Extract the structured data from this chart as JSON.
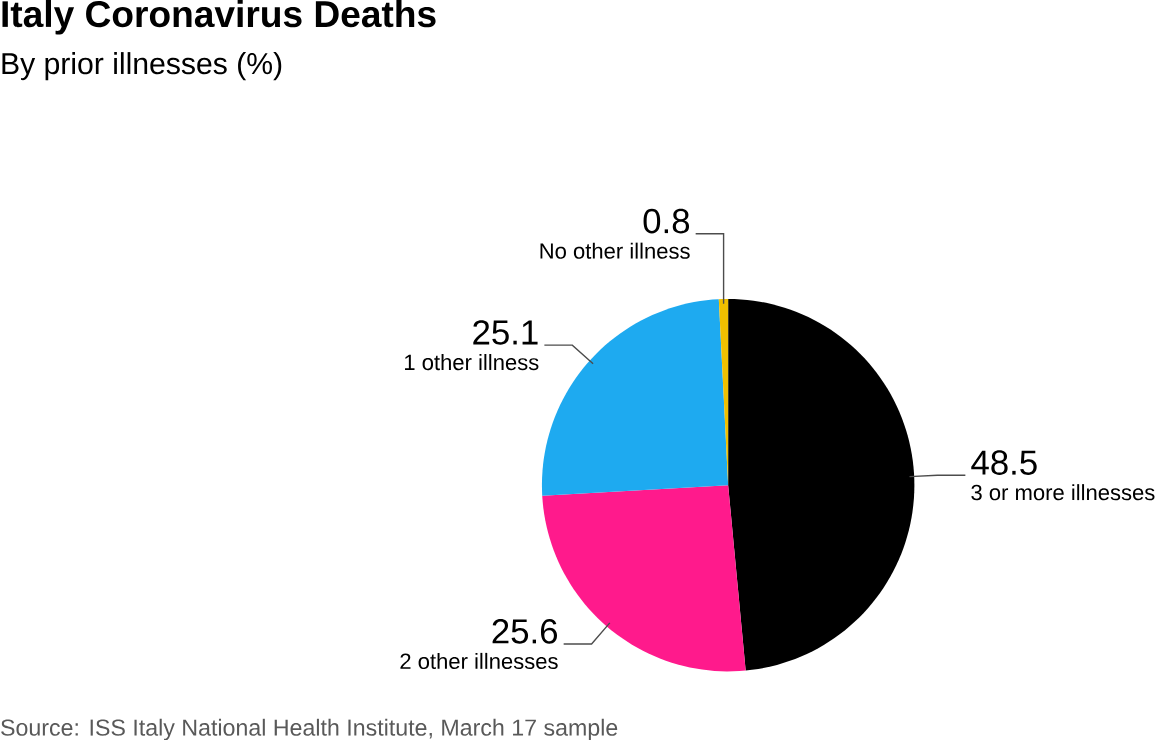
{
  "chart_data": {
    "type": "pie",
    "title": "Italy Coronavirus Deaths",
    "subtitle": "By prior illnesses (%)",
    "categories": [
      "3 or more illnesses",
      "2 other illnesses",
      "1 other illness",
      "No other illness"
    ],
    "values": [
      48.5,
      25.6,
      25.1,
      0.8
    ],
    "colors": [
      "#000000",
      "#ff1a8c",
      "#1eaaf0",
      "#f0c000"
    ],
    "data_labels": true,
    "annotations": [
      "Source: ISS Italy National Health Institute, March 17 sample"
    ]
  }
}
